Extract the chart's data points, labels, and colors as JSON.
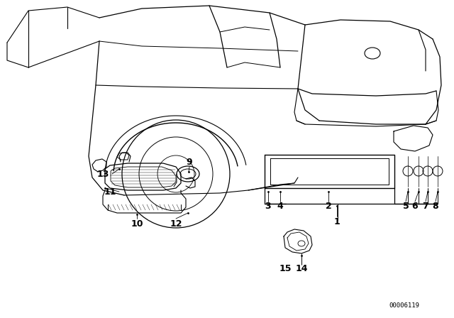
{
  "bg_color": "#ffffff",
  "line_color": "#000000",
  "text_color": "#000000",
  "diagram_id": "00006119",
  "figsize": [
    6.4,
    4.48
  ],
  "dpi": 100
}
